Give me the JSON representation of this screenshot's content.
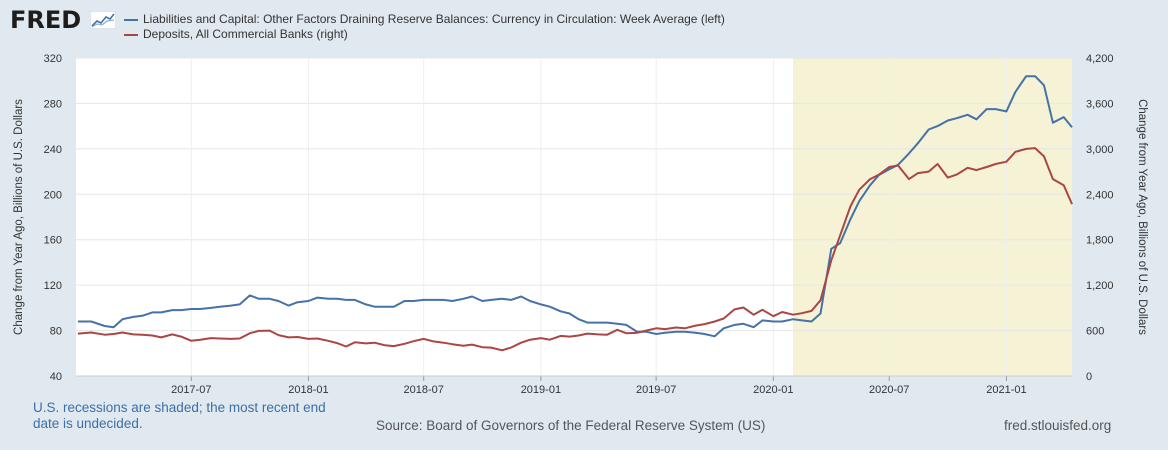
{
  "brand": {
    "logo_text": "FRED"
  },
  "legend": [
    {
      "label": "Liabilities and Capital: Other Factors Draining Reserve Balances: Currency in Circulation: Week Average (left)",
      "color": "#4572a7"
    },
    {
      "label": "Deposits, All Commercial Banks (right)",
      "color": "#aa4643"
    }
  ],
  "footer": {
    "note": "U.S. recessions are shaded; the most recent end date is undecided.",
    "source": "Source: Board of Governors of the Federal Reserve System (US)",
    "url": "fred.stlouisfed.org"
  },
  "chart_data": {
    "type": "line",
    "x_label": "",
    "xlim": [
      "2017-01-01",
      "2021-04-14"
    ],
    "x_tick_labels": [
      "2017-07",
      "2018-01",
      "2018-07",
      "2019-01",
      "2019-07",
      "2020-01",
      "2020-07",
      "2021-01"
    ],
    "y_left": {
      "label": "Change from Year Ago, Billions of U.S. Dollars",
      "range": [
        40,
        320
      ],
      "ticks": [
        40,
        80,
        120,
        160,
        200,
        240,
        280,
        320
      ]
    },
    "y_right": {
      "label": "Change from Year Ago, Billions of U.S. Dollars",
      "range": [
        0,
        4200
      ],
      "ticks": [
        0,
        600,
        1200,
        1800,
        2400,
        3000,
        3600,
        4200
      ],
      "tick_labels": [
        "0",
        "600",
        "1,200",
        "1,800",
        "2,400",
        "3,000",
        "3,600",
        "4,200"
      ]
    },
    "recession": {
      "start": "2020-02-01",
      "end": "2021-04-14",
      "color": "#f5f2d6"
    },
    "grid": true,
    "series": [
      {
        "name": "Liabilities and Capital: Other Factors Draining Reserve Balances: Currency in Circulation: Week Average",
        "axis": "left",
        "color": "#4572a7",
        "points": [
          [
            "2017-01-04",
            88
          ],
          [
            "2017-01-25",
            88
          ],
          [
            "2017-02-15",
            84
          ],
          [
            "2017-03-01",
            83
          ],
          [
            "2017-03-15",
            90
          ],
          [
            "2017-04-01",
            92
          ],
          [
            "2017-04-15",
            93
          ],
          [
            "2017-05-01",
            96
          ],
          [
            "2017-05-15",
            96
          ],
          [
            "2017-06-01",
            98
          ],
          [
            "2017-06-15",
            98
          ],
          [
            "2017-07-01",
            99
          ],
          [
            "2017-07-15",
            99
          ],
          [
            "2017-08-01",
            100
          ],
          [
            "2017-08-15",
            101
          ],
          [
            "2017-09-01",
            102
          ],
          [
            "2017-09-15",
            103
          ],
          [
            "2017-10-01",
            111
          ],
          [
            "2017-10-15",
            108
          ],
          [
            "2017-11-01",
            108
          ],
          [
            "2017-11-15",
            106
          ],
          [
            "2017-12-01",
            102
          ],
          [
            "2017-12-15",
            105
          ],
          [
            "2018-01-01",
            106
          ],
          [
            "2018-01-15",
            109
          ],
          [
            "2018-02-01",
            108
          ],
          [
            "2018-02-15",
            108
          ],
          [
            "2018-03-01",
            107
          ],
          [
            "2018-03-15",
            107
          ],
          [
            "2018-04-01",
            103
          ],
          [
            "2018-04-15",
            101
          ],
          [
            "2018-05-01",
            101
          ],
          [
            "2018-05-15",
            101
          ],
          [
            "2018-06-01",
            106
          ],
          [
            "2018-06-15",
            106
          ],
          [
            "2018-07-01",
            107
          ],
          [
            "2018-07-15",
            107
          ],
          [
            "2018-08-01",
            107
          ],
          [
            "2018-08-15",
            106
          ],
          [
            "2018-09-01",
            108
          ],
          [
            "2018-09-15",
            110
          ],
          [
            "2018-10-01",
            106
          ],
          [
            "2018-10-15",
            107
          ],
          [
            "2018-11-01",
            108
          ],
          [
            "2018-11-15",
            107
          ],
          [
            "2018-12-01",
            110
          ],
          [
            "2018-12-15",
            106
          ],
          [
            "2019-01-01",
            103
          ],
          [
            "2019-01-15",
            101
          ],
          [
            "2019-02-01",
            97
          ],
          [
            "2019-02-15",
            95
          ],
          [
            "2019-03-01",
            90
          ],
          [
            "2019-03-15",
            87
          ],
          [
            "2019-04-01",
            87
          ],
          [
            "2019-04-15",
            87
          ],
          [
            "2019-05-01",
            86
          ],
          [
            "2019-05-15",
            85
          ],
          [
            "2019-06-01",
            79
          ],
          [
            "2019-06-15",
            79
          ],
          [
            "2019-07-01",
            77
          ],
          [
            "2019-07-15",
            78
          ],
          [
            "2019-08-01",
            79
          ],
          [
            "2019-08-15",
            79
          ],
          [
            "2019-09-01",
            78
          ],
          [
            "2019-09-15",
            77
          ],
          [
            "2019-10-01",
            75
          ],
          [
            "2019-10-15",
            82
          ],
          [
            "2019-11-01",
            85
          ],
          [
            "2019-11-15",
            86
          ],
          [
            "2019-12-01",
            83
          ],
          [
            "2019-12-15",
            89
          ],
          [
            "2020-01-01",
            88
          ],
          [
            "2020-01-15",
            88
          ],
          [
            "2020-02-01",
            90
          ],
          [
            "2020-02-15",
            89
          ],
          [
            "2020-03-01",
            88
          ],
          [
            "2020-03-15",
            95
          ],
          [
            "2020-04-01",
            152
          ],
          [
            "2020-04-15",
            157
          ],
          [
            "2020-05-01",
            178
          ],
          [
            "2020-05-15",
            194
          ],
          [
            "2020-06-01",
            208
          ],
          [
            "2020-06-15",
            217
          ],
          [
            "2020-07-01",
            222
          ],
          [
            "2020-07-15",
            226
          ],
          [
            "2020-08-01",
            236
          ],
          [
            "2020-08-15",
            245
          ],
          [
            "2020-09-01",
            257
          ],
          [
            "2020-09-15",
            260
          ],
          [
            "2020-10-01",
            265
          ],
          [
            "2020-10-15",
            267
          ],
          [
            "2020-11-01",
            270
          ],
          [
            "2020-11-15",
            266
          ],
          [
            "2020-12-01",
            275
          ],
          [
            "2020-12-15",
            275
          ],
          [
            "2021-01-01",
            273
          ],
          [
            "2021-01-15",
            290
          ],
          [
            "2021-02-01",
            304
          ],
          [
            "2021-02-15",
            304
          ],
          [
            "2021-03-01",
            296
          ],
          [
            "2021-03-15",
            263
          ],
          [
            "2021-04-01",
            268
          ],
          [
            "2021-04-14",
            259
          ]
        ]
      },
      {
        "name": "Deposits, All Commercial Banks",
        "axis": "right",
        "color": "#aa4643",
        "points": [
          [
            "2017-01-04",
            560
          ],
          [
            "2017-01-25",
            575
          ],
          [
            "2017-02-15",
            545
          ],
          [
            "2017-03-01",
            555
          ],
          [
            "2017-03-15",
            575
          ],
          [
            "2017-04-01",
            550
          ],
          [
            "2017-04-15",
            545
          ],
          [
            "2017-05-01",
            535
          ],
          [
            "2017-05-15",
            510
          ],
          [
            "2017-06-01",
            550
          ],
          [
            "2017-06-15",
            520
          ],
          [
            "2017-07-01",
            465
          ],
          [
            "2017-07-15",
            480
          ],
          [
            "2017-08-01",
            500
          ],
          [
            "2017-08-15",
            495
          ],
          [
            "2017-09-01",
            490
          ],
          [
            "2017-09-15",
            495
          ],
          [
            "2017-10-01",
            565
          ],
          [
            "2017-10-15",
            595
          ],
          [
            "2017-11-01",
            600
          ],
          [
            "2017-11-15",
            540
          ],
          [
            "2017-12-01",
            510
          ],
          [
            "2017-12-15",
            515
          ],
          [
            "2018-01-01",
            490
          ],
          [
            "2018-01-15",
            495
          ],
          [
            "2018-02-01",
            465
          ],
          [
            "2018-02-15",
            435
          ],
          [
            "2018-03-01",
            390
          ],
          [
            "2018-03-15",
            445
          ],
          [
            "2018-04-01",
            430
          ],
          [
            "2018-04-15",
            440
          ],
          [
            "2018-05-01",
            405
          ],
          [
            "2018-05-15",
            395
          ],
          [
            "2018-06-01",
            425
          ],
          [
            "2018-06-15",
            460
          ],
          [
            "2018-07-01",
            490
          ],
          [
            "2018-07-15",
            460
          ],
          [
            "2018-08-01",
            440
          ],
          [
            "2018-08-15",
            420
          ],
          [
            "2018-09-01",
            400
          ],
          [
            "2018-09-15",
            415
          ],
          [
            "2018-10-01",
            380
          ],
          [
            "2018-10-15",
            375
          ],
          [
            "2018-11-01",
            340
          ],
          [
            "2018-11-15",
            375
          ],
          [
            "2018-12-01",
            440
          ],
          [
            "2018-12-15",
            480
          ],
          [
            "2019-01-01",
            500
          ],
          [
            "2019-01-15",
            480
          ],
          [
            "2019-02-01",
            530
          ],
          [
            "2019-02-15",
            520
          ],
          [
            "2019-03-01",
            535
          ],
          [
            "2019-03-15",
            560
          ],
          [
            "2019-04-01",
            550
          ],
          [
            "2019-04-15",
            545
          ],
          [
            "2019-05-01",
            610
          ],
          [
            "2019-05-15",
            565
          ],
          [
            "2019-06-01",
            570
          ],
          [
            "2019-06-15",
            600
          ],
          [
            "2019-07-01",
            630
          ],
          [
            "2019-07-15",
            620
          ],
          [
            "2019-08-01",
            640
          ],
          [
            "2019-08-15",
            630
          ],
          [
            "2019-09-01",
            665
          ],
          [
            "2019-09-15",
            685
          ],
          [
            "2019-10-01",
            720
          ],
          [
            "2019-10-15",
            760
          ],
          [
            "2019-11-01",
            880
          ],
          [
            "2019-11-15",
            905
          ],
          [
            "2019-12-01",
            810
          ],
          [
            "2019-12-15",
            875
          ],
          [
            "2020-01-01",
            790
          ],
          [
            "2020-01-15",
            845
          ],
          [
            "2020-02-01",
            810
          ],
          [
            "2020-02-15",
            830
          ],
          [
            "2020-03-01",
            860
          ],
          [
            "2020-03-15",
            1000
          ],
          [
            "2020-04-01",
            1530
          ],
          [
            "2020-04-15",
            1860
          ],
          [
            "2020-05-01",
            2240
          ],
          [
            "2020-05-15",
            2460
          ],
          [
            "2020-06-01",
            2600
          ],
          [
            "2020-06-15",
            2660
          ],
          [
            "2020-07-01",
            2760
          ],
          [
            "2020-07-15",
            2780
          ],
          [
            "2020-08-01",
            2600
          ],
          [
            "2020-08-15",
            2680
          ],
          [
            "2020-09-01",
            2700
          ],
          [
            "2020-09-15",
            2800
          ],
          [
            "2020-10-01",
            2620
          ],
          [
            "2020-10-15",
            2660
          ],
          [
            "2020-11-01",
            2750
          ],
          [
            "2020-11-15",
            2720
          ],
          [
            "2020-12-01",
            2760
          ],
          [
            "2020-12-15",
            2800
          ],
          [
            "2021-01-01",
            2830
          ],
          [
            "2021-01-15",
            2960
          ],
          [
            "2021-02-01",
            3000
          ],
          [
            "2021-02-15",
            3010
          ],
          [
            "2021-03-01",
            2900
          ],
          [
            "2021-03-15",
            2600
          ],
          [
            "2021-04-01",
            2520
          ],
          [
            "2021-04-14",
            2270
          ]
        ]
      }
    ]
  }
}
